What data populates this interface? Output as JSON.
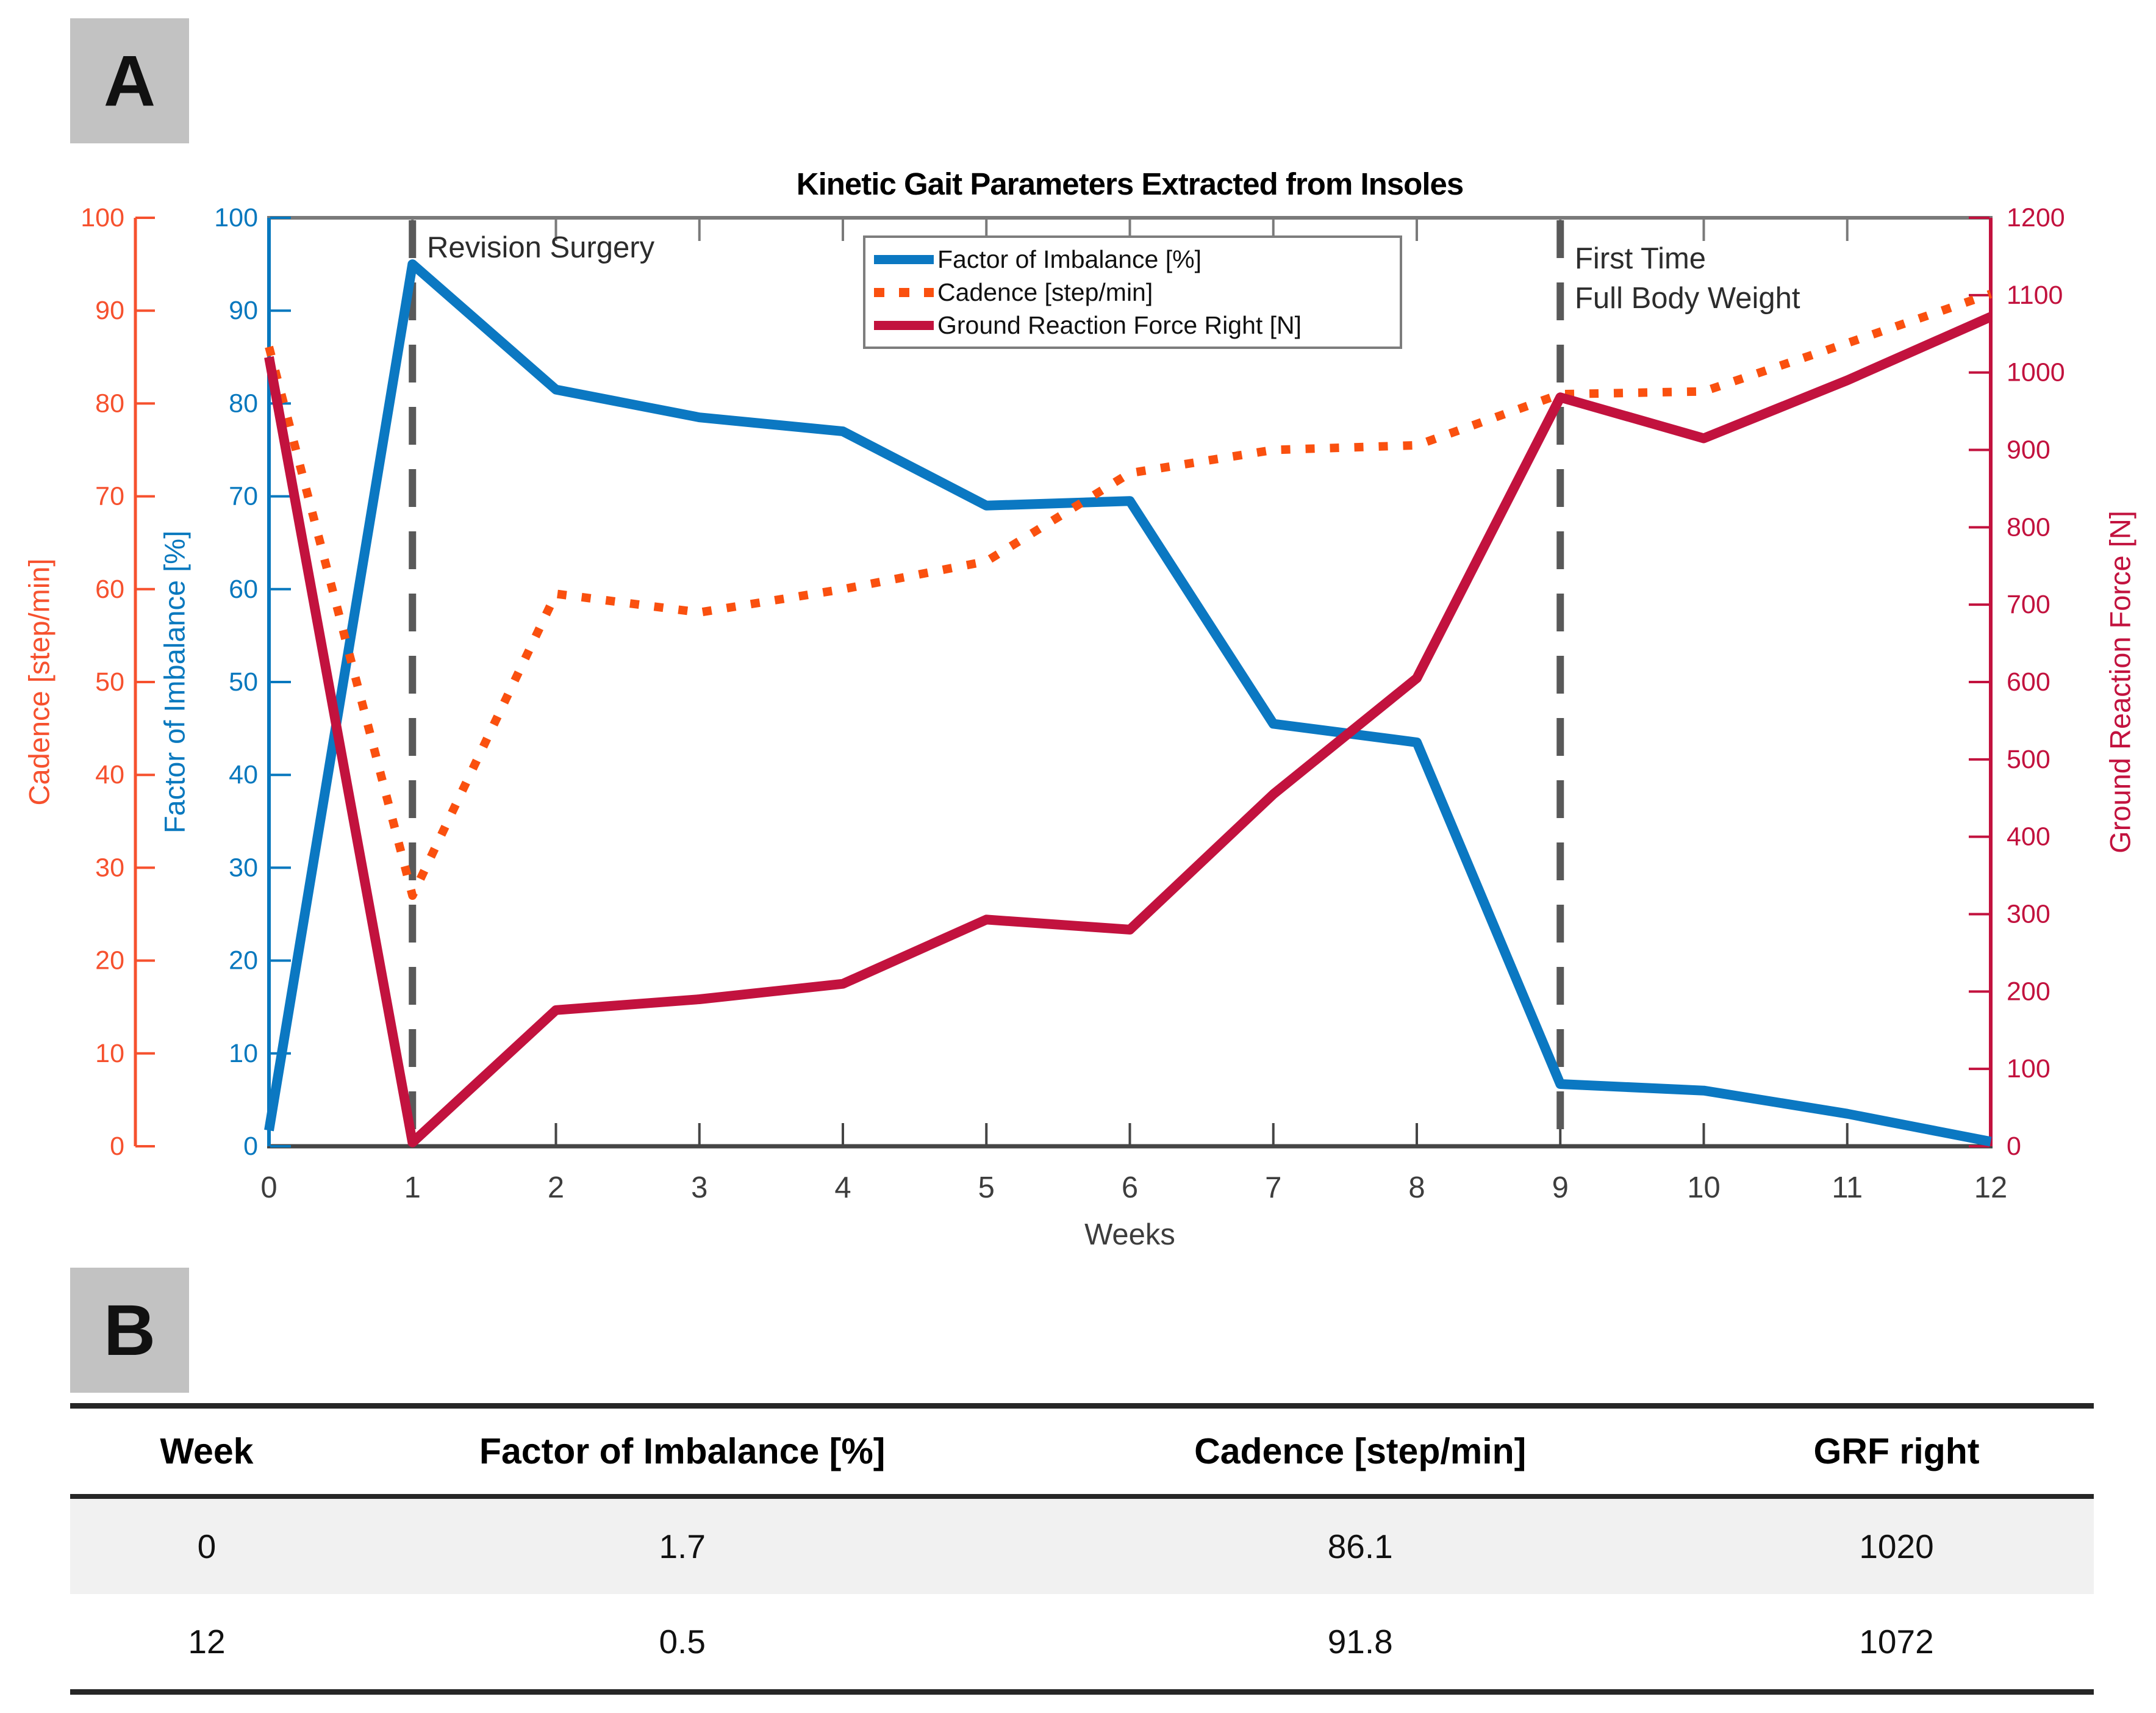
{
  "panels": {
    "a_label": "A",
    "b_label": "B"
  },
  "chart_data": {
    "type": "line",
    "title": "Kinetic Gait Parameters Extracted from Insoles",
    "xlabel": "Weeks",
    "x": [
      0,
      1,
      2,
      3,
      4,
      5,
      6,
      7,
      8,
      9,
      10,
      11,
      12
    ],
    "x_ticks": [
      0,
      1,
      2,
      3,
      4,
      5,
      6,
      7,
      8,
      9,
      10,
      11,
      12
    ],
    "grid": false,
    "legend_position": "top-center",
    "axes": {
      "cadence": {
        "label": "Cadence [step/min]",
        "color": "#f6512e",
        "min": 0,
        "max": 100,
        "ticks": [
          0,
          10,
          20,
          30,
          40,
          50,
          60,
          70,
          80,
          90,
          100
        ]
      },
      "imbalance": {
        "label": "Factor of Imbalance [%]",
        "color": "#0878be",
        "min": 0,
        "max": 100,
        "ticks": [
          0,
          10,
          20,
          30,
          40,
          50,
          60,
          70,
          80,
          90,
          100
        ]
      },
      "grf": {
        "label": "Ground Reaction Force [N]",
        "color": "#c2123e",
        "min": 0,
        "max": 1200,
        "ticks": [
          0,
          100,
          200,
          300,
          400,
          500,
          600,
          700,
          800,
          900,
          1000,
          1100,
          1200
        ]
      }
    },
    "series": [
      {
        "name": "Factor of Imbalance [%]",
        "axis": "imbalance",
        "color": "#0b78c2",
        "style": "solid",
        "values": [
          1.7,
          95,
          81.5,
          78.5,
          77,
          69,
          69.5,
          45.5,
          43.5,
          6.7,
          6,
          3.5,
          0.5
        ]
      },
      {
        "name": "Cadence [step/min]",
        "axis": "cadence",
        "color": "#fa500f",
        "style": "dotted",
        "values": [
          86.1,
          27,
          59.5,
          57.5,
          60,
          63,
          72.5,
          75,
          75.5,
          81,
          81.3,
          86.5,
          91.8
        ]
      },
      {
        "name": "Ground Reaction Force Right [N]",
        "axis": "grf",
        "color": "#c2123e",
        "style": "solid",
        "values": [
          1020,
          5,
          176,
          190,
          210,
          293,
          280,
          455,
          605,
          968,
          915,
          990,
          1072
        ]
      }
    ],
    "annotations": [
      {
        "x": 1,
        "label": "Revision Surgery"
      },
      {
        "x": 9,
        "label": "First Time\nFull Body Weight"
      }
    ]
  },
  "table": {
    "headers": [
      "Week",
      "Factor of Imbalance [%]",
      "Cadence [step/min]",
      "GRF right"
    ],
    "rows": [
      [
        "0",
        "1.7",
        "86.1",
        "1020"
      ],
      [
        "12",
        "0.5",
        "91.8",
        "1072"
      ]
    ]
  }
}
